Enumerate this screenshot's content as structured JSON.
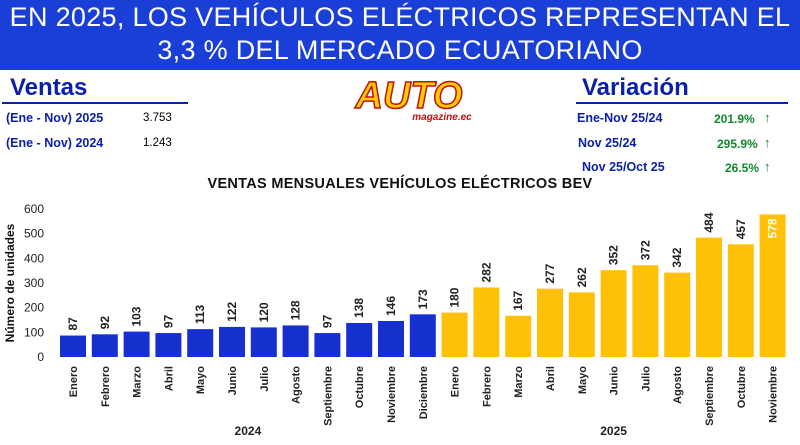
{
  "banner": {
    "line1": "EN 2025, LOS VEHÍCULOS ELÉCTRICOS REPRESENTAN EL",
    "line2": "3,3 % DEL MERCADO ECUATORIANO"
  },
  "ventas": {
    "title": "Ventas",
    "rows": [
      {
        "label": "(Ene - Nov) 2025",
        "value": "3.753"
      },
      {
        "label": "(Ene - Nov) 2024",
        "value": "1.243"
      }
    ]
  },
  "logo": {
    "main": "AUTO",
    "sub": "magazine.ec"
  },
  "variacion": {
    "title": "Variación",
    "rows": [
      {
        "label": "Ene-Nov 25/24",
        "value": "201.9%"
      },
      {
        "label": "Nov 25/24",
        "value": "295.9%"
      },
      {
        "label": "Nov 25/Oct 25",
        "value": "26.5%"
      }
    ]
  },
  "colors": {
    "banner": "#1a3fd6",
    "series_2024": "#1530cf",
    "series_2025": "#ffc107",
    "positive": "#0d8a2a"
  },
  "chart_data": {
    "type": "bar",
    "title": "VENTAS MENSUALES VEHÍCULOS ELÉCTRICOS BEV",
    "ylabel": "Número de unidades",
    "xlabel": "",
    "ylim": [
      0,
      600
    ],
    "yticks": [
      0,
      100,
      200,
      300,
      400,
      500,
      600
    ],
    "grid": false,
    "groups": [
      {
        "year": "2024",
        "color": "#1530cf",
        "categories": [
          "Enero",
          "Febrero",
          "Marzo",
          "Abril",
          "Mayo",
          "Junio",
          "Julio",
          "Agosto",
          "Septiembre",
          "Octubre",
          "Noviembre",
          "Diciembre"
        ],
        "values": [
          87,
          92,
          103,
          97,
          113,
          122,
          120,
          128,
          97,
          138,
          146,
          173
        ]
      },
      {
        "year": "2025",
        "color": "#ffc107",
        "categories": [
          "Enero",
          "Febrero",
          "Marzo",
          "Abril",
          "Mayo",
          "Junio",
          "Julio",
          "Agosto",
          "Septiembre",
          "Octubre",
          "Noviembre"
        ],
        "values": [
          180,
          282,
          167,
          277,
          262,
          352,
          372,
          342,
          484,
          457,
          578
        ]
      }
    ]
  }
}
